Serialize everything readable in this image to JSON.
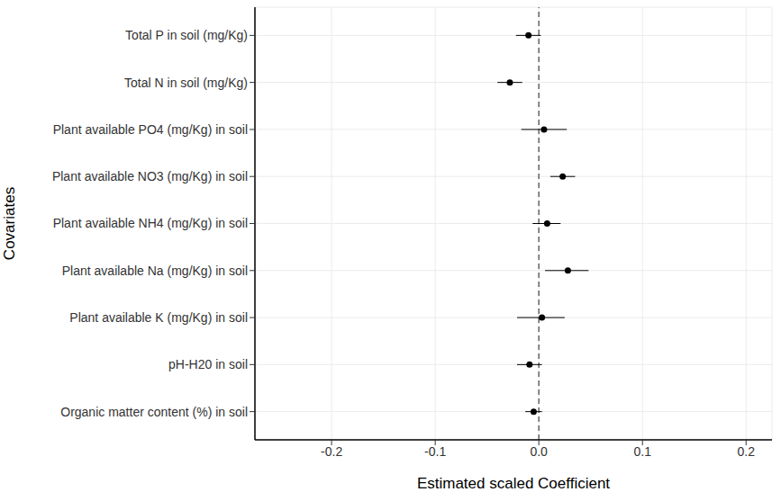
{
  "chart_data": {
    "type": "forest",
    "orientation": "horizontal",
    "x_label": "Estimated scaled Coefficient",
    "y_label": "Covariates",
    "categories": [
      "Total P in soil (mg/Kg)",
      "Total N in soil (mg/Kg)",
      "Plant available PO4 (mg/Kg) in soil",
      "Plant available NO3 (mg/Kg) in soil",
      "Plant available NH4 (mg/Kg) in soil",
      "Plant available Na (mg/Kg) in soil",
      "Plant available K (mg/Kg) in soil",
      "pH-H20 in soil",
      "Organic matter content (%) in soil"
    ],
    "values": [
      -0.01,
      -0.028,
      0.005,
      0.023,
      0.008,
      0.028,
      0.003,
      -0.009,
      -0.005
    ],
    "ci_low": [
      -0.022,
      -0.04,
      -0.017,
      0.011,
      -0.006,
      0.006,
      -0.021,
      -0.021,
      -0.013
    ],
    "ci_high": [
      0.002,
      -0.016,
      0.027,
      0.035,
      0.021,
      0.048,
      0.025,
      0.003,
      0.003
    ],
    "color": "#000000",
    "xlim": [
      -0.274,
      0.225
    ],
    "xticks": [
      -0.2,
      -0.1,
      {
        "value": 0,
        "label": "0.0"
      },
      0.1,
      0.2
    ],
    "ref_line_x": 0,
    "grid": true
  }
}
